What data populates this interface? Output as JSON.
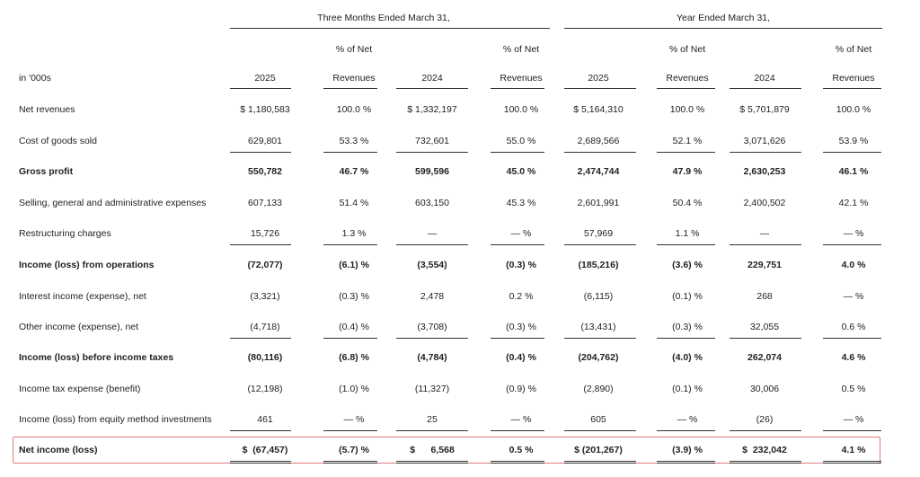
{
  "header": {
    "group_three_months": "Three Months Ended March 31,",
    "group_year": "Year Ended March 31,",
    "units_label": "in '000s",
    "pct_line1": "% of Net",
    "pct_line2": "Revenues",
    "col_2025": "2025",
    "col_2024": "2024"
  },
  "rows": [
    {
      "label": "Net revenues",
      "bold": false,
      "q25": "$ 1,180,583",
      "q25p": "100.0 %",
      "q24": "$ 1,332,197",
      "q24p": "100.0 %",
      "y25": "$ 5,164,310",
      "y25p": "100.0 %",
      "y24": "$ 5,701,879",
      "y24p": "100.0 %"
    },
    {
      "label": "Cost of goods sold",
      "bold": false,
      "q25": "629,801",
      "q25p": "53.3 %",
      "q24": "732,601",
      "q24p": "55.0 %",
      "y25": "2,689,566",
      "y25p": "52.1 %",
      "y24": "3,071,626",
      "y24p": "53.9 %"
    },
    {
      "label": "Gross profit",
      "bold": true,
      "q25": "550,782",
      "q25p": "46.7 %",
      "q24": "599,596",
      "q24p": "45.0 %",
      "y25": "2,474,744",
      "y25p": "47.9 %",
      "y24": "2,630,253",
      "y24p": "46.1 %"
    },
    {
      "label": "Selling, general and administrative expenses",
      "bold": false,
      "q25": "607,133",
      "q25p": "51.4 %",
      "q24": "603,150",
      "q24p": "45.3 %",
      "y25": "2,601,991",
      "y25p": "50.4 %",
      "y24": "2,400,502",
      "y24p": "42.1 %"
    },
    {
      "label": "Restructuring charges",
      "bold": false,
      "q25": "15,726",
      "q25p": "1.3 %",
      "q24": "—",
      "q24p": "— %",
      "y25": "57,969",
      "y25p": "1.1 %",
      "y24": "—",
      "y24p": "— %"
    },
    {
      "label": "Income (loss) from operations",
      "bold": true,
      "q25": "(72,077)",
      "q25p": "(6.1) %",
      "q24": "(3,554)",
      "q24p": "(0.3) %",
      "y25": "(185,216)",
      "y25p": "(3.6) %",
      "y24": "229,751",
      "y24p": "4.0 %"
    },
    {
      "label": "Interest income (expense), net",
      "bold": false,
      "q25": "(3,321)",
      "q25p": "(0.3) %",
      "q24": "2,478",
      "q24p": "0.2 %",
      "y25": "(6,115)",
      "y25p": "(0.1) %",
      "y24": "268",
      "y24p": "— %"
    },
    {
      "label": "Other income (expense), net",
      "bold": false,
      "q25": "(4,718)",
      "q25p": "(0.4) %",
      "q24": "(3,708)",
      "q24p": "(0.3) %",
      "y25": "(13,431)",
      "y25p": "(0.3) %",
      "y24": "32,055",
      "y24p": "0.6 %"
    },
    {
      "label": "Income (loss) before income taxes",
      "bold": true,
      "q25": "(80,116)",
      "q25p": "(6.8) %",
      "q24": "(4,784)",
      "q24p": "(0.4) %",
      "y25": "(204,762)",
      "y25p": "(4.0) %",
      "y24": "262,074",
      "y24p": "4.6 %"
    },
    {
      "label": "Income tax expense (benefit)",
      "bold": false,
      "q25": "(12,198)",
      "q25p": "(1.0) %",
      "q24": "(11,327)",
      "q24p": "(0.9) %",
      "y25": "(2,890)",
      "y25p": "(0.1) %",
      "y24": "30,006",
      "y24p": "0.5 %"
    },
    {
      "label": "Income (loss) from equity method investments",
      "bold": false,
      "q25": "461",
      "q25p": "— %",
      "q24": "25",
      "q24p": "— %",
      "y25": "605",
      "y25p": "— %",
      "y24": "(26)",
      "y24p": "— %"
    },
    {
      "label": "Net income (loss)",
      "bold": true,
      "q25": "$  (67,457)",
      "q25p": "(5.7) %",
      "q24": "$      6,568",
      "q24p": "0.5 %",
      "y25": "$ (201,267)",
      "y25p": "(3.9) %",
      "y24": "$  232,042",
      "y24p": "4.1 %"
    }
  ]
}
